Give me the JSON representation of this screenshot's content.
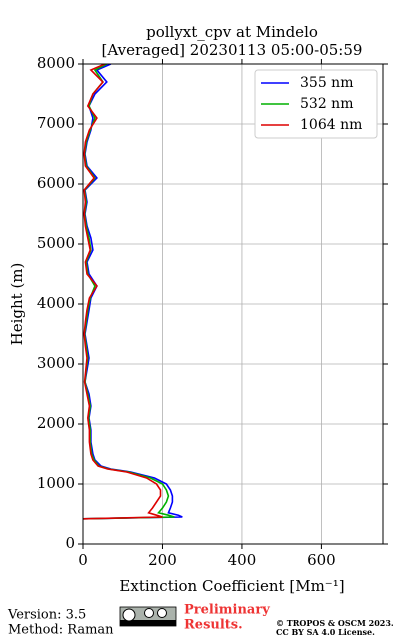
{
  "chart_data": {
    "type": "line",
    "title": "pollyxt_cpv at Mindelo",
    "subtitle": "[Averaged] 20230113 05:00-05:59",
    "x_label": "Extinction Coefficient [Mm⁻¹]",
    "y_label": "Height (m)",
    "heights": [
      420,
      450,
      480,
      520,
      600,
      700,
      800,
      900,
      1000,
      1100,
      1200,
      1250,
      1300,
      1400,
      1500,
      1700,
      1900,
      2100,
      2300,
      2500,
      2700,
      2900,
      3100,
      3300,
      3500,
      3700,
      3900,
      4100,
      4300,
      4500,
      4700,
      4900,
      5100,
      5300,
      5500,
      5700,
      5900,
      6100,
      6300,
      6500,
      6700,
      6900,
      7100,
      7300,
      7500,
      7700,
      7900,
      8000
    ],
    "series": [
      {
        "name": "355 nm",
        "color": "#0000ff",
        "values": [
          0,
          250,
          240,
          215,
          220,
          225,
          225,
          220,
          210,
          180,
          120,
          70,
          45,
          30,
          25,
          20,
          20,
          15,
          20,
          15,
          5,
          10,
          15,
          10,
          5,
          10,
          15,
          20,
          35,
          15,
          10,
          25,
          20,
          10,
          5,
          10,
          5,
          35,
          10,
          5,
          10,
          20,
          25,
          15,
          30,
          60,
          35,
          70
        ]
      },
      {
        "name": "532 nm",
        "color": "#00b000",
        "values": [
          0,
          230,
          215,
          190,
          200,
          210,
          215,
          210,
          200,
          170,
          115,
          65,
          40,
          28,
          22,
          18,
          18,
          14,
          18,
          12,
          5,
          8,
          12,
          8,
          4,
          8,
          12,
          18,
          30,
          12,
          8,
          20,
          15,
          8,
          4,
          8,
          4,
          30,
          8,
          4,
          8,
          18,
          30,
          15,
          25,
          50,
          30,
          60
        ]
      },
      {
        "name": "1064 nm",
        "color": "#dd0000",
        "values": [
          0,
          200,
          185,
          165,
          175,
          185,
          195,
          195,
          185,
          160,
          110,
          62,
          38,
          25,
          20,
          16,
          16,
          12,
          16,
          10,
          4,
          7,
          10,
          6,
          3,
          6,
          10,
          16,
          35,
          10,
          6,
          18,
          12,
          6,
          3,
          6,
          3,
          28,
          6,
          3,
          6,
          16,
          35,
          12,
          25,
          50,
          20,
          55
        ]
      }
    ],
    "xlim": [
      0,
      755
    ],
    "xticks": [
      0,
      200,
      400,
      600
    ],
    "ylim": [
      0,
      8000
    ],
    "yticks": [
      0,
      1000,
      2000,
      3000,
      4000,
      5000,
      6000,
      7000,
      8000
    ],
    "grid": true,
    "legend": "upper right"
  },
  "footer": {
    "version": "Version: 3.5",
    "method": "Method: Raman",
    "preliminary": [
      "Preliminary",
      "Results."
    ],
    "copyright": [
      "© TROPOS & OSCM 2023.",
      "CC BY SA 4.0 License."
    ]
  }
}
